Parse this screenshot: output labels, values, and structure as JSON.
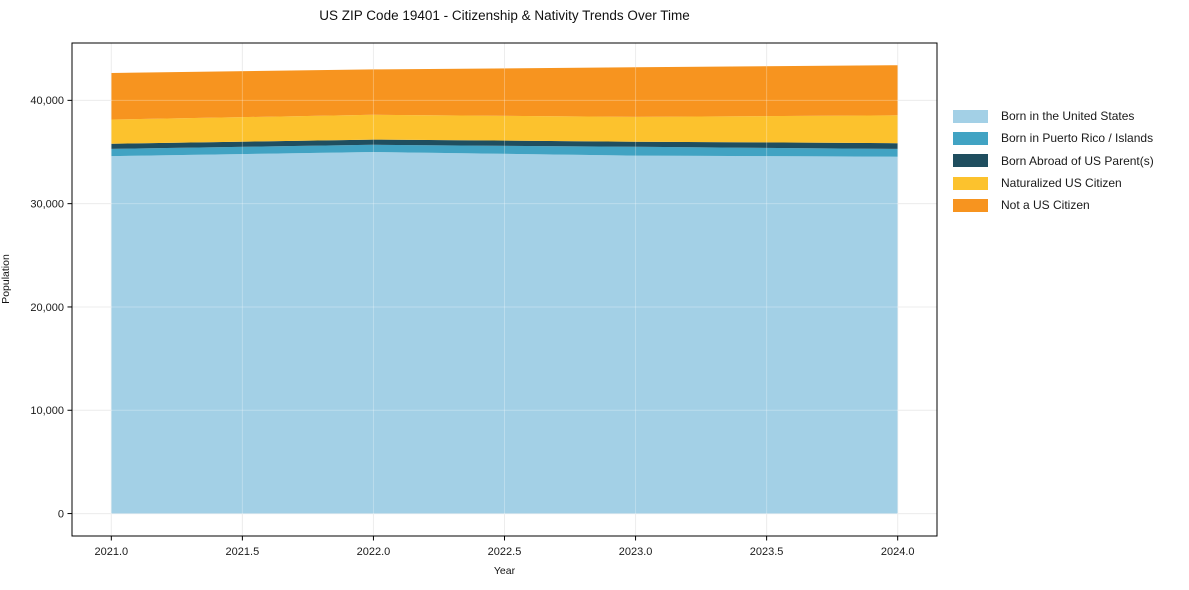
{
  "chart_data": {
    "type": "area",
    "stacked": true,
    "title": "US ZIP Code 19401 - Citizenship & Nativity Trends Over Time",
    "xlabel": "Year",
    "ylabel": "Population",
    "x": [
      2021,
      2022,
      2023,
      2024
    ],
    "series": [
      {
        "name": "Born in the United States",
        "color": "#a3d0e6",
        "values": [
          34600,
          35000,
          34650,
          34550
        ]
      },
      {
        "name": "Born in Puerto Rico / Islands",
        "color": "#41a3c3",
        "values": [
          700,
          700,
          850,
          750
        ]
      },
      {
        "name": "Born Abroad of US Parent(s)",
        "color": "#1f4e5f",
        "values": [
          500,
          500,
          500,
          550
        ]
      },
      {
        "name": "Naturalized US Citizen",
        "color": "#fcc22d",
        "values": [
          2350,
          2400,
          2400,
          2700
        ]
      },
      {
        "name": "Not a US Citizen",
        "color": "#f7941f",
        "values": [
          4500,
          4400,
          4800,
          4850
        ]
      }
    ],
    "stack_totals": [
      42650,
      43000,
      43200,
      43400
    ],
    "x_ticks": {
      "values": [
        2021.0,
        2021.5,
        2022.0,
        2022.5,
        2023.0,
        2023.5,
        2024.0
      ],
      "labels": [
        "2021.0",
        "2021.5",
        "2022.0",
        "2022.5",
        "2023.0",
        "2023.5",
        "2024.0"
      ]
    },
    "y_ticks": {
      "values": [
        0,
        10000,
        20000,
        30000,
        40000
      ],
      "labels": [
        "0",
        "10,000",
        "20,000",
        "30,000",
        "40,000"
      ]
    },
    "xlim": [
      2020.85,
      2024.15
    ],
    "ylim": [
      -2172,
      45552
    ],
    "grid": true,
    "legend_position": "outside-right-top",
    "colors": {
      "spine": "#000000",
      "grid_under": "#e7e7e7",
      "grid_over_rgba": "rgba(255,255,255,0.28)",
      "tick_text": "#1a1a1a",
      "background": "#ffffff"
    }
  }
}
